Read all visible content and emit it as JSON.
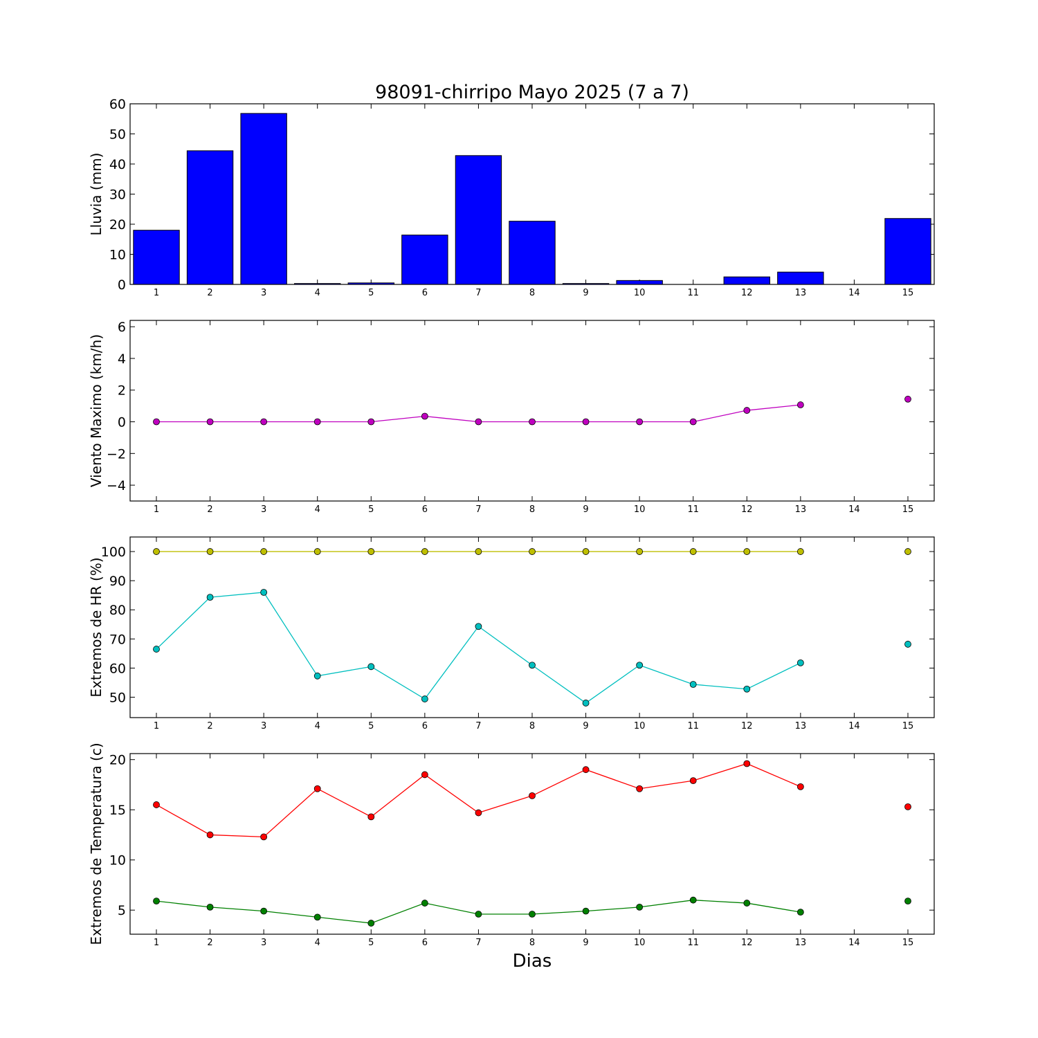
{
  "figure": {
    "title": "98091-chirripo Mayo 2025  (7 a 7)",
    "xlabel": "Dias"
  },
  "chart_data": [
    {
      "type": "bar",
      "ylabel": "Lluvia (mm)",
      "categories": [
        "1",
        "2",
        "3",
        "4",
        "5",
        "6",
        "7",
        "8",
        "9",
        "10",
        "11",
        "12",
        "13",
        "14",
        "15"
      ],
      "ylim": [
        0,
        60
      ],
      "yticks": [
        "0",
        "10",
        "20",
        "30",
        "40",
        "50",
        "60"
      ],
      "series": [
        {
          "color": "#0000ff",
          "values": [
            18.0,
            44.4,
            56.8,
            0.3,
            0.5,
            16.4,
            42.8,
            21.0,
            0.3,
            1.3,
            0.0,
            2.5,
            4.1,
            null,
            21.9
          ]
        }
      ]
    },
    {
      "type": "line",
      "ylabel": "Viento Maximo (km/h)",
      "categories": [
        "1",
        "2",
        "3",
        "4",
        "5",
        "6",
        "7",
        "8",
        "9",
        "10",
        "11",
        "12",
        "13",
        "14",
        "15"
      ],
      "ylim": [
        -5,
        6.4
      ],
      "yticks": [
        "−4",
        "−2",
        "0",
        "2",
        "4",
        "6"
      ],
      "series": [
        {
          "color": "#bf00bf",
          "values": [
            0,
            0,
            0,
            0,
            0,
            0.35,
            0,
            0,
            0,
            0,
            0,
            0.72,
            1.07,
            null,
            1.43
          ]
        }
      ]
    },
    {
      "type": "line",
      "ylabel": "Extremos de HR (%)",
      "categories": [
        "1",
        "2",
        "3",
        "4",
        "5",
        "6",
        "7",
        "8",
        "9",
        "10",
        "11",
        "12",
        "13",
        "14",
        "15"
      ],
      "ylim": [
        43,
        105
      ],
      "yticks": [
        "50",
        "60",
        "70",
        "80",
        "90",
        "100"
      ],
      "series": [
        {
          "color": "#bfbf00",
          "values": [
            100,
            100,
            100,
            100,
            100,
            100,
            100,
            100,
            100,
            100,
            100,
            100,
            100,
            null,
            100
          ]
        },
        {
          "color": "#00bfbf",
          "values": [
            66.5,
            84.3,
            86.0,
            57.3,
            60.5,
            49.4,
            74.3,
            61.0,
            48.0,
            61.0,
            54.4,
            52.8,
            61.8,
            null,
            68.2
          ]
        }
      ]
    },
    {
      "type": "line",
      "ylabel": "Extremos de Temperatura (c)",
      "categories": [
        "1",
        "2",
        "3",
        "4",
        "5",
        "6",
        "7",
        "8",
        "9",
        "10",
        "11",
        "12",
        "13",
        "14",
        "15"
      ],
      "ylim": [
        2.6,
        20.6
      ],
      "yticks": [
        "5",
        "10",
        "15",
        "20"
      ],
      "series": [
        {
          "color": "#ff0000",
          "values": [
            15.5,
            12.5,
            12.3,
            17.1,
            14.3,
            18.5,
            14.7,
            16.4,
            19.0,
            17.1,
            17.9,
            19.6,
            17.3,
            null,
            15.3
          ]
        },
        {
          "color": "#008000",
          "values": [
            5.9,
            5.3,
            4.9,
            4.3,
            3.7,
            5.7,
            4.6,
            4.6,
            4.9,
            5.3,
            6.0,
            5.7,
            4.8,
            null,
            5.9
          ]
        }
      ]
    }
  ]
}
